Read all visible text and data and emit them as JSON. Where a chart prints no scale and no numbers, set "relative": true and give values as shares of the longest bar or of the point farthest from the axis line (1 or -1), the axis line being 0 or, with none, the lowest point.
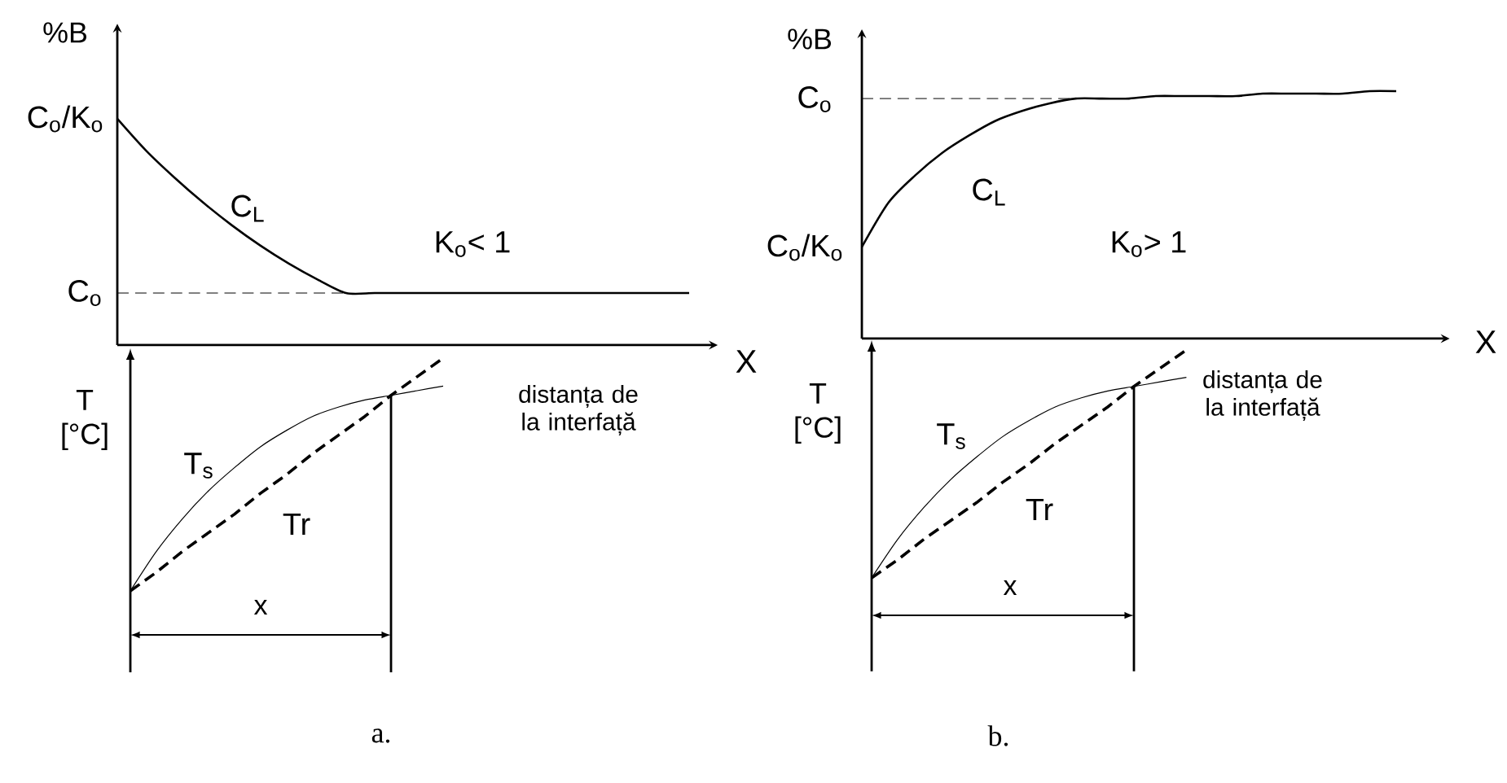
{
  "chart_data": [
    {
      "type": "line",
      "relative": true,
      "xlabel": "X",
      "ylabel": "%B",
      "categories": [
        null,
        null,
        null,
        null,
        null,
        null,
        null,
        null,
        null,
        null,
        null,
        null,
        null,
        null,
        null,
        null,
        null,
        null,
        null,
        null,
        null
      ],
      "series": [
        {
          "name": "C$_{L}$",
          "color": "#000000",
          "values": [
            1,
            0.86,
            0.74,
            0.63,
            0.53,
            0.44,
            0.36,
            0.29,
            0.23,
            0.23,
            0.23,
            0.23,
            0.23,
            0.23,
            0.23,
            0.23,
            0.23,
            0.23,
            0.23,
            0.23,
            0.23
          ]
        },
        {
          "color": "#000000",
          "line_style": "dashed",
          "values": [
            0.23,
            0.23,
            0.23,
            0.23,
            0.23,
            0.23,
            0.23,
            0.23,
            0.23,
            null,
            null,
            null,
            null,
            null,
            null,
            null,
            null,
            null,
            null,
            null,
            null
          ]
        }
      ],
      "annotations": [
        "C$_{o}$/K$_{o}$",
        "C$_{o}$",
        "K$_{o}$< 1"
      ]
    },
    {
      "type": "line",
      "relative": true,
      "xlabel": "X",
      "ylabel": "%B",
      "categories": [
        null,
        null,
        null,
        null,
        null,
        null,
        null,
        null,
        null,
        null,
        null,
        null,
        null,
        null,
        null,
        null,
        null,
        null,
        null,
        null,
        null
      ],
      "series": [
        {
          "name": "C$_{L}$",
          "color": "#000000",
          "values": [
            0.37,
            0.55,
            0.66,
            0.75,
            0.82,
            0.88,
            0.92,
            0.95,
            0.97,
            0.97,
            0.97,
            0.98,
            0.98,
            0.98,
            0.98,
            0.99,
            0.99,
            0.99,
            0.99,
            1,
            1
          ]
        },
        {
          "color": "#000000",
          "line_style": "dashed",
          "values": [
            0.97,
            0.97,
            0.97,
            0.97,
            0.97,
            0.97,
            0.97,
            0.97,
            0.97,
            null,
            null,
            null,
            null,
            null,
            null,
            null,
            null,
            null,
            null,
            null,
            null
          ]
        }
      ],
      "annotations": [
        "C$_{o}$",
        "C$_{o}$/K$_{o}$",
        "K$_{o}$> 1"
      ]
    },
    {
      "type": "line",
      "relative": true,
      "ylabel": "T [°C]",
      "categories": [
        null,
        null,
        null,
        null,
        null,
        null,
        null,
        null,
        null,
        null,
        null,
        null,
        null
      ],
      "series": [
        {
          "name": "T$_{s}$",
          "color": "#000000",
          "values": [
            0,
            0.17,
            0.31,
            0.43,
            0.53,
            0.62,
            0.69,
            0.75,
            0.79,
            0.82,
            0.84,
            0.86,
            0.88
          ]
        },
        {
          "name": "Tr",
          "color": "#000000",
          "line_style": "dashed",
          "values": [
            0,
            0.08,
            0.17,
            0.25,
            0.33,
            0.42,
            0.5,
            0.59,
            0.67,
            0.75,
            0.84,
            0.92,
            1
          ]
        }
      ],
      "annotations": [
        "x",
        "distanța de la interfață",
        "a."
      ]
    },
    {
      "type": "line",
      "relative": true,
      "ylabel": "T [°C]",
      "categories": [
        null,
        null,
        null,
        null,
        null,
        null,
        null,
        null,
        null,
        null,
        null,
        null,
        null
      ],
      "series": [
        {
          "name": "T$_{s}$",
          "color": "#000000",
          "values": [
            0,
            0.17,
            0.31,
            0.43,
            0.53,
            0.62,
            0.69,
            0.75,
            0.79,
            0.82,
            0.84,
            0.86,
            0.88
          ]
        },
        {
          "name": "Tr",
          "color": "#000000",
          "line_style": "dashed",
          "values": [
            0,
            0.08,
            0.17,
            0.25,
            0.33,
            0.42,
            0.5,
            0.59,
            0.67,
            0.75,
            0.84,
            0.92,
            1
          ]
        }
      ],
      "annotations": [
        "x",
        "distanța de la interfață",
        "b."
      ]
    }
  ]
}
